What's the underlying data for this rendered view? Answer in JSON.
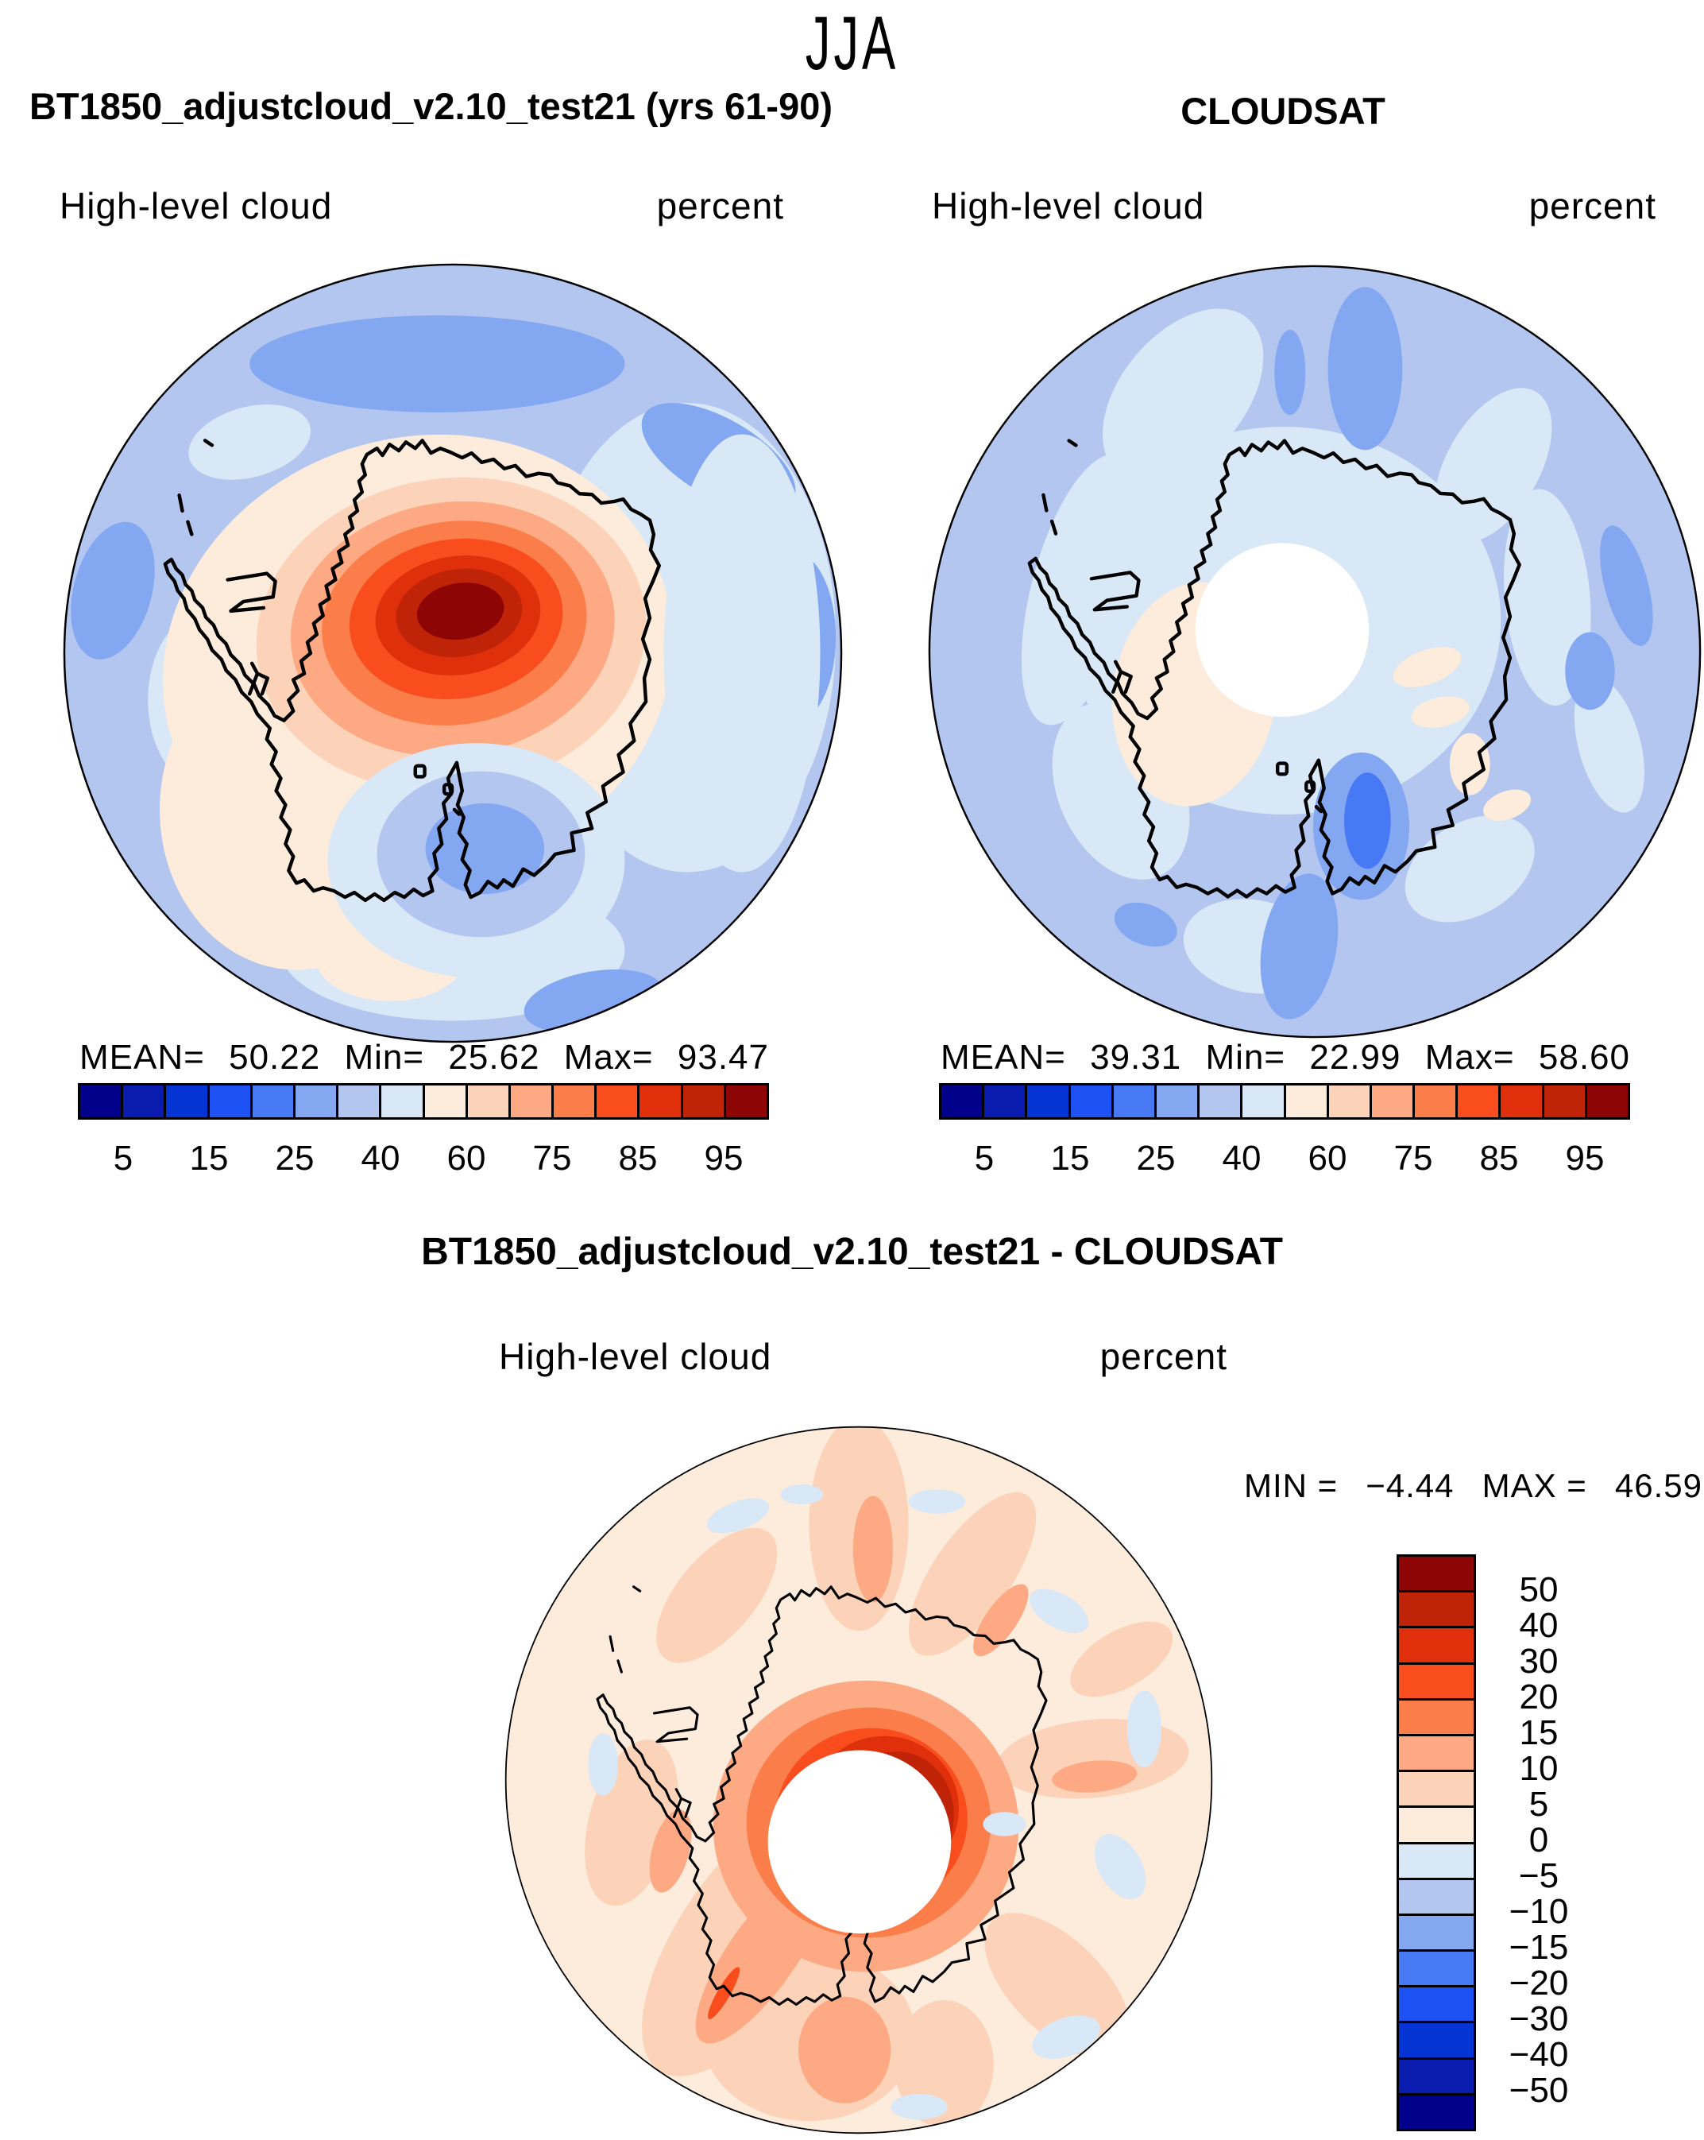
{
  "season_title": "JJA",
  "panels_top": [
    {
      "title": "BT1850_adjustcloud_v2.10_test21 (yrs 61-90)",
      "variable_label": "High-level cloud",
      "units_label": "percent",
      "stats": {
        "mean_label": "MEAN=",
        "mean": "50.22",
        "min_label": "Min=",
        "min": "25.62",
        "max_label": "Max=",
        "max": "93.47"
      }
    },
    {
      "title": "CLOUDSAT",
      "variable_label": "High-level cloud",
      "units_label": "percent",
      "stats": {
        "mean_label": "MEAN=",
        "mean": "39.31",
        "min_label": "Min=",
        "min": "22.99",
        "max_label": "Max=",
        "max": "58.60"
      }
    }
  ],
  "difference_panel": {
    "title": "BT1850_adjustcloud_v2.10_test21 - CLOUDSAT",
    "variable_label": "High-level cloud",
    "units_label": "percent",
    "minmax": {
      "min_label": "MIN =",
      "min": "−4.44",
      "max_label": "MAX =",
      "max": "46.59"
    }
  },
  "colorbars": {
    "palette_blue_to_red": [
      "#01018b",
      "#0a1cb0",
      "#0534d4",
      "#1e51f3",
      "#4879f5",
      "#84a7f2",
      "#b3c6ef",
      "#d9e8f6",
      "#fdebdc",
      "#fcd2b8",
      "#fda983",
      "#fb7d49",
      "#f94d1d",
      "#e02f0b",
      "#bf2408",
      "#8e0505"
    ],
    "horizontal_tick_labels": [
      "5",
      "15",
      "25",
      "40",
      "60",
      "75",
      "85",
      "95"
    ],
    "vertical_tick_labels": [
      "50",
      "40",
      "30",
      "20",
      "15",
      "10",
      "5",
      "0",
      "−5",
      "−10",
      "−15",
      "−20",
      "−30",
      "−40",
      "−50"
    ]
  },
  "chart_data": [
    {
      "type": "heatmap",
      "subtype": "south-polar stereographic filled-contour map",
      "season": "JJA",
      "title": "BT1850_adjustcloud_v2.10_test21 (yrs 61-90)",
      "variable": "High-level cloud",
      "units": "percent",
      "stats": {
        "mean": 50.22,
        "min": 25.62,
        "max": 93.47
      },
      "contour_levels": [
        5,
        10,
        15,
        20,
        25,
        30,
        40,
        50,
        60,
        70,
        75,
        80,
        85,
        90,
        95
      ],
      "labeled_levels": [
        5,
        15,
        25,
        40,
        60,
        75,
        85,
        95
      ],
      "legend_position": "horizontal colorbar below map",
      "features": "Strong maximum >90% over interior East Antarctica; local minimum 25-40% over Ross Sea; 40-60% over surrounding ocean"
    },
    {
      "type": "heatmap",
      "subtype": "south-polar stereographic filled-contour map",
      "season": "JJA",
      "title": "CLOUDSAT",
      "variable": "High-level cloud",
      "units": "percent",
      "stats": {
        "mean": 39.31,
        "min": 22.99,
        "max": 58.6
      },
      "contour_levels": [
        5,
        10,
        15,
        20,
        25,
        30,
        40,
        50,
        60,
        70,
        75,
        80,
        85,
        90,
        95
      ],
      "labeled_levels": [
        5,
        15,
        25,
        40,
        60,
        75,
        85,
        95
      ],
      "legend_position": "horizontal colorbar below map",
      "features": "Fairly uniform 30-45% cloud cover; white no-data circle at the pole; slight 40-60% patch over West Antarctica"
    },
    {
      "type": "heatmap",
      "subtype": "south-polar stereographic filled-contour difference map",
      "season": "JJA",
      "title": "BT1850_adjustcloud_v2.10_test21 - CLOUDSAT",
      "variable": "High-level cloud difference",
      "units": "percent",
      "stats": {
        "min": -4.44,
        "max": 46.59
      },
      "contour_levels": [
        -50,
        -40,
        -30,
        -20,
        -15,
        -10,
        -5,
        0,
        5,
        10,
        15,
        20,
        30,
        40,
        50
      ],
      "legend_position": "vertical colorbar at right",
      "features": "Positive differences of +20 to +46% ringing the polar no-data hole; mostly +5 to +15% elsewhere; scattered small negative (-5 to 0) patches"
    }
  ]
}
